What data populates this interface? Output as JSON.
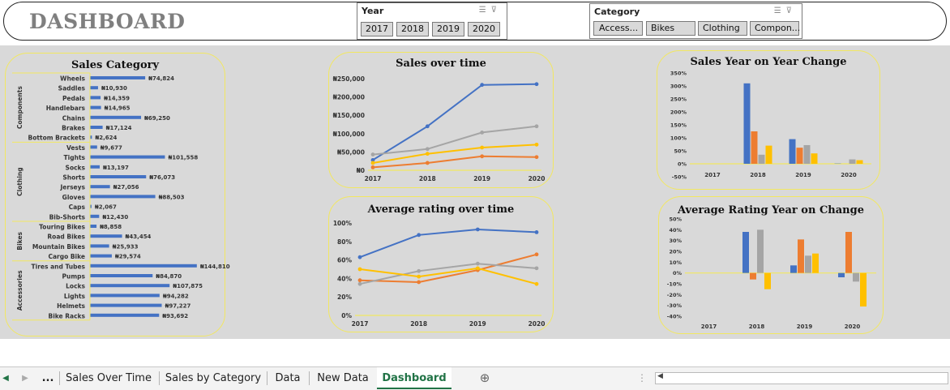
{
  "dashboard": {
    "title": "DASHBOARD"
  },
  "year_slicer": {
    "header": "Year",
    "items": [
      "2017",
      "2018",
      "2019",
      "2020"
    ]
  },
  "category_slicer": {
    "header": "Category",
    "items": [
      "Access...",
      "Bikes",
      "Clothing",
      "Compon..."
    ]
  },
  "colors": {
    "series_blue": "#4472c4",
    "series_orange": "#ed7d31",
    "series_gray": "#a5a5a5",
    "series_yellow": "#ffc000",
    "panel_border": "#f2e761",
    "background": "#d9d9d9"
  },
  "sheet_tabs": {
    "items": [
      "Sales Over Time",
      "Sales by Category",
      "Data",
      "New Data",
      "Dashboard"
    ],
    "active": "Dashboard",
    "more_label": "..."
  },
  "chart_data": [
    {
      "type": "bar",
      "orientation": "horizontal",
      "title": "Sales Category",
      "groups": [
        {
          "name": "Components",
          "items": [
            {
              "label": "Wheels",
              "value": 74824,
              "text": "₦74,824"
            },
            {
              "label": "Saddles",
              "value": 10930,
              "text": "₦10,930"
            },
            {
              "label": "Pedals",
              "value": 14359,
              "text": "₦14,359"
            },
            {
              "label": "Handlebars",
              "value": 14965,
              "text": "₦14,965"
            },
            {
              "label": "Chains",
              "value": 69250,
              "text": "₦69,250"
            },
            {
              "label": "Brakes",
              "value": 17124,
              "text": "₦17,124"
            },
            {
              "label": "Bottom Brackets",
              "value": 2624,
              "text": "₦2,624"
            }
          ]
        },
        {
          "name": "Clothing",
          "items": [
            {
              "label": "Vests",
              "value": 9677,
              "text": "₦9,677"
            },
            {
              "label": "Tights",
              "value": 101558,
              "text": "₦101,558"
            },
            {
              "label": "Socks",
              "value": 13197,
              "text": "₦13,197"
            },
            {
              "label": "Shorts",
              "value": 76073,
              "text": "₦76,073"
            },
            {
              "label": "Jerseys",
              "value": 27056,
              "text": "₦27,056"
            },
            {
              "label": "Gloves",
              "value": 88503,
              "text": "₦88,503"
            },
            {
              "label": "Caps",
              "value": 2067,
              "text": "₦2,067"
            },
            {
              "label": "Bib-Shorts",
              "value": 12430,
              "text": "₦12,430"
            }
          ]
        },
        {
          "name": "Bikes",
          "items": [
            {
              "label": "Touring Bikes",
              "value": 8858,
              "text": "₦8,858"
            },
            {
              "label": "Road Bikes",
              "value": 43454,
              "text": "₦43,454"
            },
            {
              "label": "Mountain Bikes",
              "value": 25933,
              "text": "₦25,933"
            },
            {
              "label": "Cargo Bike",
              "value": 29574,
              "text": "₦29,574"
            }
          ]
        },
        {
          "name": "Accessories",
          "items": [
            {
              "label": "Tires and Tubes",
              "value": 144810,
              "text": "₦144,810"
            },
            {
              "label": "Pumps",
              "value": 84870,
              "text": "₦84,870"
            },
            {
              "label": "Locks",
              "value": 107875,
              "text": "₦107,875"
            },
            {
              "label": "Lights",
              "value": 94282,
              "text": "₦94,282"
            },
            {
              "label": "Helmets",
              "value": 97227,
              "text": "₦97,227"
            },
            {
              "label": "Bike Racks",
              "value": 93692,
              "text": "₦93,692"
            }
          ]
        }
      ]
    },
    {
      "type": "line",
      "title": "Sales over time",
      "x": [
        "2017",
        "2018",
        "2019",
        "2020"
      ],
      "y_ticks": [
        "₦0",
        "₦50,000",
        "₦100,000",
        "₦150,000",
        "₦200,000",
        "₦250,000"
      ],
      "ylim": [
        0,
        250000
      ],
      "series": [
        {
          "color": "#4472c4",
          "values": [
            28000,
            120000,
            233000,
            235000
          ]
        },
        {
          "color": "#ed7d31",
          "values": [
            8000,
            20000,
            38000,
            36000
          ]
        },
        {
          "color": "#a5a5a5",
          "values": [
            43000,
            58000,
            103000,
            120000
          ]
        },
        {
          "color": "#ffc000",
          "values": [
            20000,
            45000,
            62000,
            70000
          ]
        }
      ]
    },
    {
      "type": "bar",
      "title": "Sales Year on Year Change",
      "categories": [
        "2017",
        "2018",
        "2019",
        "2020"
      ],
      "y_ticks": [
        "-50%",
        "0%",
        "50%",
        "100%",
        "150%",
        "200%",
        "250%",
        "300%",
        "350%"
      ],
      "ylim": [
        -50,
        350
      ],
      "series": [
        {
          "color": "#4472c4",
          "values": [
            0,
            310,
            95,
            1
          ]
        },
        {
          "color": "#ed7d31",
          "values": [
            0,
            125,
            62,
            0
          ]
        },
        {
          "color": "#a5a5a5",
          "values": [
            0,
            35,
            72,
            17
          ]
        },
        {
          "color": "#ffc000",
          "values": [
            0,
            70,
            40,
            14
          ]
        }
      ]
    },
    {
      "type": "line",
      "title": "Average rating over time",
      "x": [
        "2017",
        "2018",
        "2019",
        "2020"
      ],
      "y_ticks": [
        "0%",
        "20%",
        "40%",
        "60%",
        "80%",
        "100%"
      ],
      "ylim": [
        0,
        100
      ],
      "series": [
        {
          "color": "#4472c4",
          "values": [
            63,
            87,
            93,
            90
          ]
        },
        {
          "color": "#ed7d31",
          "values": [
            38,
            36,
            49,
            66
          ]
        },
        {
          "color": "#a5a5a5",
          "values": [
            34,
            48,
            56,
            51
          ]
        },
        {
          "color": "#ffc000",
          "values": [
            50,
            42,
            51,
            34
          ]
        }
      ]
    },
    {
      "type": "bar",
      "title": "Average Rating Year on Change",
      "categories": [
        "2017",
        "2018",
        "2019",
        "2020"
      ],
      "y_ticks": [
        "-40%",
        "-30%",
        "-20%",
        "-10%",
        "0%",
        "10%",
        "20%",
        "30%",
        "40%",
        "50%"
      ],
      "ylim": [
        -40,
        50
      ],
      "series": [
        {
          "color": "#4472c4",
          "values": [
            0,
            38,
            7,
            -4
          ]
        },
        {
          "color": "#ed7d31",
          "values": [
            0,
            -6,
            31,
            38
          ]
        },
        {
          "color": "#a5a5a5",
          "values": [
            0,
            40,
            16,
            -8
          ]
        },
        {
          "color": "#ffc000",
          "values": [
            0,
            -15,
            18,
            -31
          ]
        }
      ]
    }
  ]
}
